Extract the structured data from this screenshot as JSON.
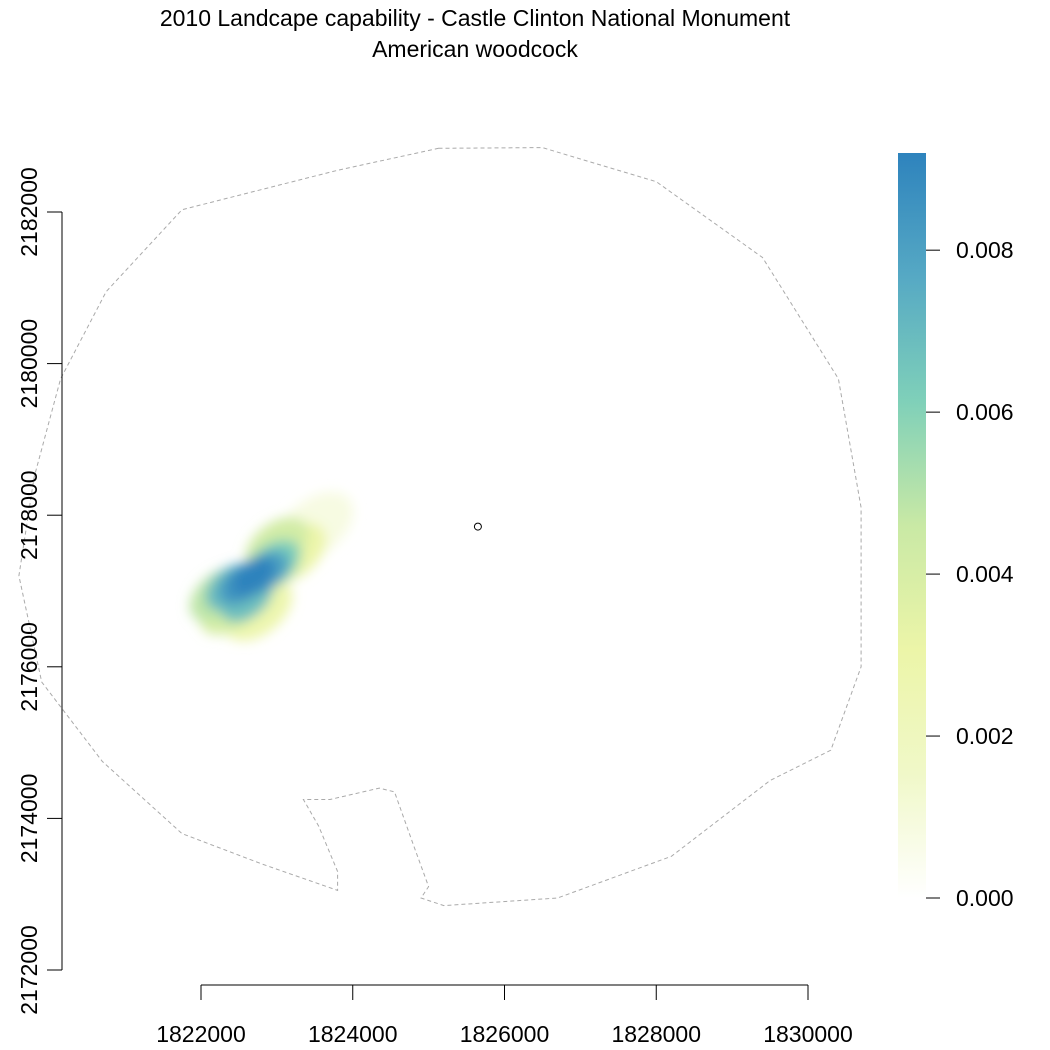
{
  "chart_data": {
    "type": "heatmap",
    "title": "2010 Landcape capability - Castle Clinton National Monument",
    "subtitle": "American woodcock",
    "xlabel": "",
    "ylabel": "",
    "x_ticks": [
      1822000,
      1824000,
      1826000,
      1828000,
      1830000
    ],
    "y_ticks": [
      2172000,
      2174000,
      2176000,
      2178000,
      2180000,
      2182000
    ],
    "xlim": [
      1822000,
      1830000
    ],
    "ylim": [
      2172000,
      2182000
    ],
    "grid": false,
    "legend": {
      "type": "colorbar",
      "placement": "right",
      "ticks": [
        "0.000",
        "0.002",
        "0.004",
        "0.006",
        "0.008"
      ],
      "range": [
        0,
        0.0092
      ],
      "colors": [
        "#ffffff",
        "#f0f8c8",
        "#ecf5a8",
        "#c9e9a5",
        "#7fd0b9",
        "#56a9c4",
        "#2e83bd"
      ]
    },
    "study_area_boundary": {
      "style": "dashed",
      "color": "#aaaaaa",
      "points": [
        [
          1825130,
          2182840
        ],
        [
          1826500,
          2182850
        ],
        [
          1828000,
          2182400
        ],
        [
          1829400,
          2181400
        ],
        [
          1830400,
          2179800
        ],
        [
          1830700,
          2178100
        ],
        [
          1830700,
          2176000
        ],
        [
          1830300,
          2174900
        ],
        [
          1829500,
          2174500
        ],
        [
          1828200,
          2173500
        ],
        [
          1826700,
          2172950
        ],
        [
          1825200,
          2172850
        ],
        [
          1824900,
          2172950
        ],
        [
          1825000,
          2173100
        ],
        [
          1824800,
          2173650
        ],
        [
          1824550,
          2174350
        ],
        [
          1824350,
          2174400
        ],
        [
          1823700,
          2174250
        ],
        [
          1823350,
          2174250
        ],
        [
          1823550,
          2173900
        ],
        [
          1823800,
          2173300
        ],
        [
          1823800,
          2173050
        ],
        [
          1822800,
          2173400
        ],
        [
          1821750,
          2173800
        ],
        [
          1820700,
          2174750
        ],
        [
          1819900,
          2175800
        ],
        [
          1819600,
          2177200
        ],
        [
          1819800,
          2178500
        ],
        [
          1820150,
          2179800
        ],
        [
          1820750,
          2180950
        ],
        [
          1821750,
          2182030
        ],
        [
          1823800,
          2182550
        ]
      ]
    },
    "site_marker": {
      "x": 1825650,
      "y": 2177850,
      "color": "#000000"
    },
    "capability_cells": [
      {
        "x": 1822700,
        "y": 2177200,
        "v": 0.0092
      },
      {
        "x": 1822550,
        "y": 2177100,
        "v": 0.0085
      },
      {
        "x": 1822850,
        "y": 2177250,
        "v": 0.008
      },
      {
        "x": 1822400,
        "y": 2177050,
        "v": 0.007
      },
      {
        "x": 1822600,
        "y": 2176900,
        "v": 0.0068
      },
      {
        "x": 1822950,
        "y": 2177350,
        "v": 0.0062
      },
      {
        "x": 1822250,
        "y": 2176950,
        "v": 0.0048
      },
      {
        "x": 1823000,
        "y": 2177600,
        "v": 0.0042
      },
      {
        "x": 1822400,
        "y": 2176800,
        "v": 0.004
      },
      {
        "x": 1823200,
        "y": 2177500,
        "v": 0.003
      },
      {
        "x": 1822750,
        "y": 2176750,
        "v": 0.0028
      },
      {
        "x": 1823500,
        "y": 2177850,
        "v": 0.0008
      }
    ]
  }
}
